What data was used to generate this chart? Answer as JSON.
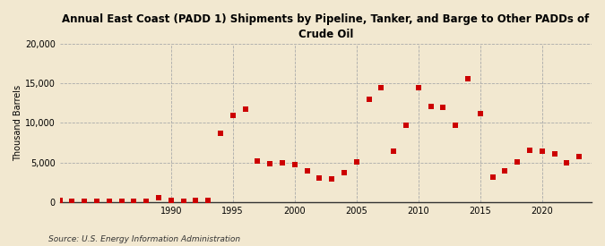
{
  "title": "Annual East Coast (PADD 1) Shipments by Pipeline, Tanker, and Barge to Other PADDs of\nCrude Oil",
  "ylabel": "Thousand Barrels",
  "source": "Source: U.S. Energy Information Administration",
  "background_color": "#f2e8d0",
  "plot_bg_color": "#f2e8d0",
  "marker_color": "#cc0000",
  "years": [
    1981,
    1982,
    1983,
    1984,
    1985,
    1986,
    1987,
    1988,
    1989,
    1990,
    1991,
    1992,
    1993,
    1994,
    1995,
    1996,
    1997,
    1998,
    1999,
    2000,
    2001,
    2002,
    2003,
    2004,
    2005,
    2006,
    2007,
    2008,
    2009,
    2010,
    2011,
    2012,
    2013,
    2014,
    2015,
    2016,
    2017,
    2018,
    2019,
    2020,
    2021,
    2022,
    2023
  ],
  "values": [
    200,
    100,
    60,
    50,
    60,
    50,
    80,
    150,
    500,
    200,
    100,
    200,
    200,
    8700,
    11000,
    11700,
    5200,
    4900,
    5000,
    4700,
    3900,
    3000,
    2900,
    3700,
    5100,
    13000,
    14500,
    6400,
    9700,
    14400,
    12100,
    12000,
    9700,
    15600,
    11200,
    3200,
    4000,
    5100,
    6500,
    6400,
    6100,
    5000,
    5800
  ],
  "ylim": [
    0,
    20000
  ],
  "yticks": [
    0,
    5000,
    10000,
    15000,
    20000
  ],
  "xlim": [
    1981,
    2024
  ],
  "xticks": [
    1990,
    1995,
    2000,
    2005,
    2010,
    2015,
    2020
  ]
}
